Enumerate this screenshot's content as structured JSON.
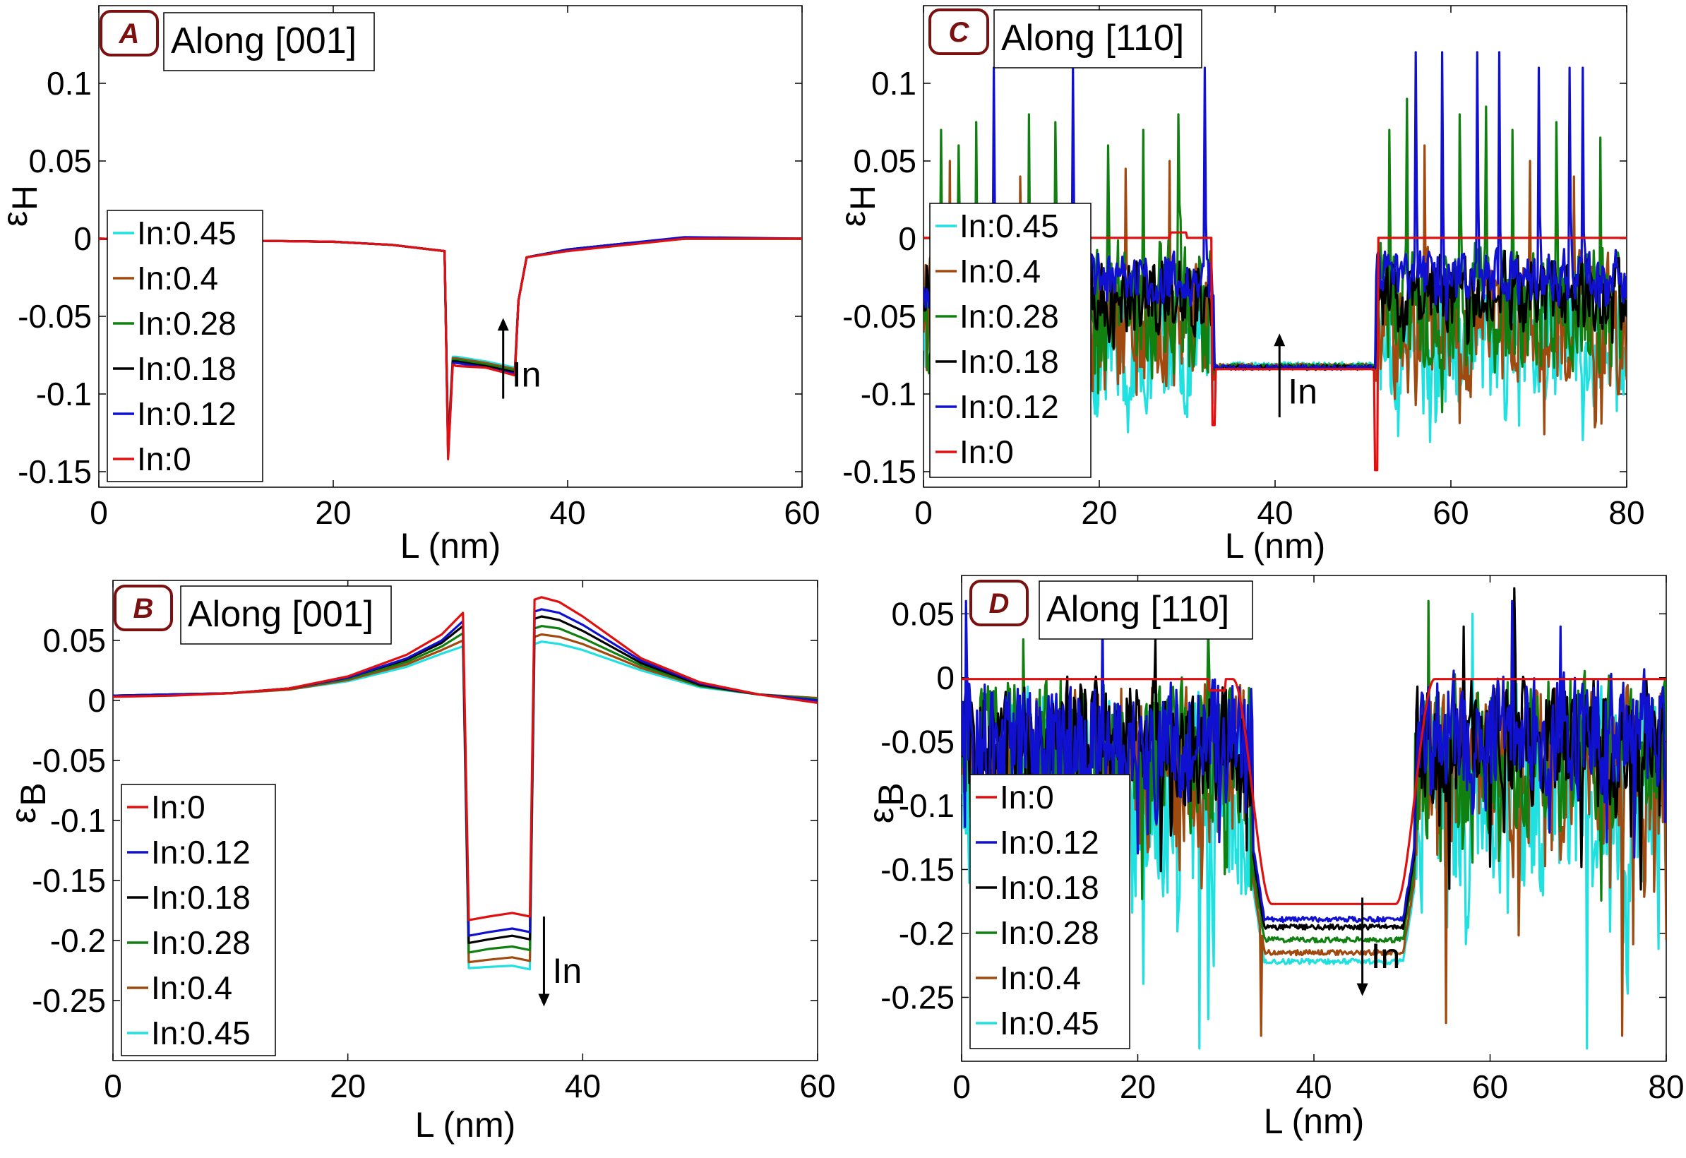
{
  "chart_data": [
    {
      "panel": "A",
      "title": "Along [001]",
      "type": "line",
      "xlabel": "L (nm)",
      "ylabel_sym": "ε",
      "ylabel_sub": "H",
      "xlim": [
        0,
        60
      ],
      "ylim": [
        -0.16,
        0.15
      ],
      "xticks": [
        0,
        20,
        40,
        60
      ],
      "xtick_labels": [
        "0",
        "20",
        "40",
        "60"
      ],
      "yticks": [
        0.1,
        0.05,
        0,
        -0.05,
        -0.1,
        -0.15
      ],
      "ytick_labels": [
        "0.1",
        "0.05",
        "0",
        "-0.05",
        "-0.1",
        "-0.15"
      ],
      "legend_order": [
        5,
        4,
        3,
        2,
        1,
        0
      ],
      "legend_position": "lower-left",
      "arrow": {
        "x": 34.5,
        "y_from": -0.103,
        "y_to": -0.051,
        "label": "In"
      },
      "series": [
        {
          "name": "In:0",
          "color": "#e01010",
          "x": [
            0,
            10,
            20,
            25,
            29.5,
            29.8,
            30.2,
            30.5,
            33,
            35.5,
            35.8,
            36.5,
            40,
            45,
            50,
            60
          ],
          "y": [
            0,
            -0.001,
            -0.002,
            -0.004,
            -0.008,
            -0.142,
            -0.081,
            -0.082,
            -0.083,
            -0.088,
            -0.04,
            -0.012,
            -0.008,
            -0.004,
            0,
            0
          ]
        },
        {
          "name": "In:0.12",
          "color": "#1010d0",
          "x": [
            0,
            10,
            20,
            25,
            29.5,
            29.8,
            30.2,
            30.5,
            33,
            35.5,
            35.8,
            36.5,
            40,
            45,
            50,
            60
          ],
          "y": [
            0,
            -0.001,
            -0.002,
            -0.004,
            -0.008,
            -0.14,
            -0.08,
            -0.08,
            -0.083,
            -0.087,
            -0.04,
            -0.012,
            -0.007,
            -0.003,
            0.001,
            0
          ]
        },
        {
          "name": "In:0.18",
          "color": "#000000",
          "x": [
            0,
            10,
            20,
            25,
            29.5,
            29.8,
            30.2,
            30.5,
            33,
            35.5,
            35.8,
            36.5,
            40,
            45,
            50,
            60
          ],
          "y": [
            0,
            -0.001,
            -0.002,
            -0.004,
            -0.008,
            -0.138,
            -0.079,
            -0.079,
            -0.082,
            -0.086,
            -0.04,
            -0.012,
            -0.007,
            -0.003,
            0,
            0
          ]
        },
        {
          "name": "In:0.28",
          "color": "#108010",
          "x": [
            0,
            10,
            20,
            25,
            29.5,
            29.8,
            30.2,
            30.5,
            33,
            35.5,
            35.8,
            36.5,
            40,
            45,
            50,
            60
          ],
          "y": [
            0,
            -0.001,
            -0.002,
            -0.004,
            -0.008,
            -0.136,
            -0.078,
            -0.078,
            -0.081,
            -0.085,
            -0.04,
            -0.012,
            -0.007,
            -0.003,
            0,
            0
          ]
        },
        {
          "name": "In:0.4",
          "color": "#a04a10",
          "x": [
            0,
            10,
            20,
            25,
            29.5,
            29.8,
            30.2,
            30.5,
            33,
            35.5,
            35.8,
            36.5,
            40,
            45,
            50,
            60
          ],
          "y": [
            0,
            -0.001,
            -0.002,
            -0.004,
            -0.008,
            -0.134,
            -0.077,
            -0.077,
            -0.08,
            -0.084,
            -0.04,
            -0.012,
            -0.007,
            -0.003,
            0,
            0
          ]
        },
        {
          "name": "In:0.45",
          "color": "#20e0e0",
          "x": [
            0,
            10,
            20,
            25,
            29.5,
            29.8,
            30.2,
            30.5,
            33,
            35.5,
            35.8,
            36.5,
            40,
            45,
            50,
            60
          ],
          "y": [
            0,
            -0.001,
            -0.002,
            -0.004,
            -0.008,
            -0.132,
            -0.076,
            -0.076,
            -0.079,
            -0.083,
            -0.04,
            -0.012,
            -0.007,
            -0.003,
            0,
            0
          ]
        }
      ]
    },
    {
      "panel": "B",
      "title": "Along [001]",
      "type": "line",
      "xlabel": "L (nm)",
      "ylabel_sym": "ε",
      "ylabel_sub": "B",
      "xlim": [
        0,
        60
      ],
      "ylim": [
        -0.3,
        0.1
      ],
      "xticks": [
        0,
        20,
        40,
        60
      ],
      "xtick_labels": [
        "0",
        "20",
        "40",
        "60"
      ],
      "yticks": [
        0.05,
        0,
        -0.05,
        -0.1,
        -0.15,
        -0.2,
        -0.25
      ],
      "ytick_labels": [
        "0.05",
        "0",
        "-0.05",
        "-0.1",
        "-0.15",
        "-0.2",
        "-0.25"
      ],
      "legend_order": [
        0,
        1,
        2,
        3,
        4,
        5
      ],
      "legend_position": "lower-left",
      "arrow": {
        "x": 36.7,
        "y_from": -0.18,
        "y_to": -0.255,
        "label": "In"
      },
      "series": [
        {
          "name": "In:0",
          "color": "#e01010",
          "x": [
            0,
            5,
            10,
            15,
            20,
            25,
            28,
            29.8,
            30.3,
            32,
            34,
            35.5,
            35.9,
            36.5,
            38,
            40,
            45,
            50,
            55,
            60
          ],
          "y": [
            0.003,
            0.004,
            0.006,
            0.01,
            0.02,
            0.038,
            0.055,
            0.073,
            -0.183,
            -0.18,
            -0.177,
            -0.18,
            0.084,
            0.086,
            0.082,
            0.07,
            0.035,
            0.015,
            0.005,
            -0.002
          ]
        },
        {
          "name": "In:0.12",
          "color": "#1010d0",
          "x": [
            0,
            5,
            10,
            15,
            20,
            25,
            28,
            29.8,
            30.3,
            32,
            34,
            35.5,
            35.9,
            36.5,
            38,
            40,
            45,
            50,
            55,
            60
          ],
          "y": [
            0.004,
            0.005,
            0.006,
            0.01,
            0.019,
            0.035,
            0.05,
            0.066,
            -0.196,
            -0.193,
            -0.19,
            -0.193,
            0.074,
            0.076,
            0.073,
            0.063,
            0.033,
            0.014,
            0.005,
            0
          ]
        },
        {
          "name": "In:0.18",
          "color": "#000000",
          "x": [
            0,
            5,
            10,
            15,
            20,
            25,
            28,
            29.8,
            30.3,
            32,
            34,
            35.5,
            35.9,
            36.5,
            38,
            40,
            45,
            50,
            55,
            60
          ],
          "y": [
            0.004,
            0.005,
            0.006,
            0.01,
            0.019,
            0.034,
            0.048,
            0.062,
            -0.202,
            -0.199,
            -0.196,
            -0.199,
            0.068,
            0.07,
            0.067,
            0.058,
            0.031,
            0.013,
            0.005,
            0
          ]
        },
        {
          "name": "In:0.28",
          "color": "#108010",
          "x": [
            0,
            5,
            10,
            15,
            20,
            25,
            28,
            29.8,
            30.3,
            32,
            34,
            35.5,
            35.9,
            36.5,
            38,
            40,
            45,
            50,
            55,
            60
          ],
          "y": [
            0.004,
            0.005,
            0.006,
            0.01,
            0.018,
            0.032,
            0.045,
            0.056,
            -0.21,
            -0.207,
            -0.205,
            -0.208,
            0.06,
            0.062,
            0.06,
            0.052,
            0.029,
            0.012,
            0.005,
            0.001
          ]
        },
        {
          "name": "In:0.4",
          "color": "#a04a10",
          "x": [
            0,
            5,
            10,
            15,
            20,
            25,
            28,
            29.8,
            30.3,
            32,
            34,
            35.5,
            35.9,
            36.5,
            38,
            40,
            45,
            50,
            55,
            60
          ],
          "y": [
            0.004,
            0.005,
            0.006,
            0.009,
            0.017,
            0.03,
            0.042,
            0.05,
            -0.218,
            -0.216,
            -0.214,
            -0.217,
            0.053,
            0.055,
            0.053,
            0.047,
            0.027,
            0.012,
            0.005,
            0.002
          ]
        },
        {
          "name": "In:0.45",
          "color": "#20e0e0",
          "x": [
            0,
            5,
            10,
            15,
            20,
            25,
            28,
            29.8,
            30.3,
            32,
            34,
            35.5,
            35.9,
            36.5,
            38,
            40,
            45,
            50,
            55,
            60
          ],
          "y": [
            0.004,
            0.005,
            0.006,
            0.009,
            0.016,
            0.028,
            0.039,
            0.045,
            -0.223,
            -0.222,
            -0.221,
            -0.224,
            0.047,
            0.049,
            0.047,
            0.042,
            0.025,
            0.011,
            0.005,
            0.002
          ]
        }
      ]
    },
    {
      "panel": "C",
      "title": "Along [110]",
      "type": "line",
      "xlabel": "L (nm)",
      "ylabel_sym": "ε",
      "ylabel_sub": "H",
      "xlim": [
        0,
        80
      ],
      "ylim": [
        -0.16,
        0.15
      ],
      "xticks": [
        0,
        20,
        40,
        60,
        80
      ],
      "xtick_labels": [
        "0",
        "20",
        "40",
        "60",
        "80"
      ],
      "yticks": [
        0.1,
        0.05,
        0,
        -0.05,
        -0.1,
        -0.15
      ],
      "ytick_labels": [
        "0.1",
        "0.05",
        "0",
        "-0.05",
        "-0.1",
        "-0.15"
      ],
      "legend_order": [
        5,
        4,
        3,
        2,
        1,
        0
      ],
      "legend_position": "lower-left",
      "arrow": {
        "x": 40.5,
        "y_from": -0.115,
        "y_to": -0.061,
        "label": "In"
      },
      "barrier": [
        33,
        51.5
      ],
      "barrier_mean": [
        -0.084,
        -0.083,
        -0.083,
        -0.082,
        -0.082,
        -0.081
      ],
      "barrier_plateau_min": -0.149,
      "edge_plateau": 0.004,
      "noise_seeds": [
        101,
        202,
        303,
        404,
        505,
        606
      ],
      "noise_order": [
        5,
        4,
        3,
        2,
        1,
        0
      ],
      "noise_center": [
        0,
        -0.025,
        -0.035,
        -0.045,
        -0.055,
        -0.07
      ],
      "noise_amp": [
        0.003,
        0.018,
        0.025,
        0.045,
        0.045,
        0.04
      ],
      "spikes": [
        {
          "x": [],
          "y": []
        },
        {
          "x": [
            8,
            17,
            32,
            56,
            59,
            63,
            65.5,
            70,
            73.5,
            75
          ],
          "y": [
            0.11,
            0.11,
            0.11,
            0.12,
            0.12,
            0.12,
            0.12,
            0.11,
            0.11,
            0.11
          ]
        },
        {
          "x": [],
          "y": []
        },
        {
          "x": [
            2,
            4,
            6,
            12,
            15,
            21,
            25,
            29,
            53,
            55,
            61,
            64,
            67,
            72,
            77
          ],
          "y": [
            0.07,
            0.06,
            0.075,
            0.08,
            0.075,
            0.06,
            0.07,
            0.08,
            0.07,
            0.09,
            0.08,
            0.085,
            0.07,
            0.075,
            0.065
          ]
        },
        {
          "x": [
            3,
            11,
            23,
            28,
            57,
            69,
            74
          ],
          "y": [
            0.05,
            0.04,
            0.045,
            0.05,
            0.06,
            0.05,
            0.04
          ]
        },
        {
          "x": [],
          "y": []
        }
      ],
      "series": [
        {
          "name": "In:0",
          "color": "#e01010",
          "x": [],
          "y": []
        },
        {
          "name": "In:0.12",
          "color": "#1010d0",
          "x": [],
          "y": []
        },
        {
          "name": "In:0.18",
          "color": "#000000",
          "x": [],
          "y": []
        },
        {
          "name": "In:0.28",
          "color": "#108010",
          "x": [],
          "y": []
        },
        {
          "name": "In:0.4",
          "color": "#a04a10",
          "x": [],
          "y": []
        },
        {
          "name": "In:0.45",
          "color": "#20e0e0",
          "x": [],
          "y": []
        }
      ]
    },
    {
      "panel": "D",
      "title": "Along [110]",
      "type": "line",
      "xlabel": "L (nm)",
      "ylabel_sym": "ε",
      "ylabel_sub": "B",
      "xlim": [
        0,
        80
      ],
      "ylim": [
        -0.3,
        0.08
      ],
      "xticks": [
        0,
        20,
        40,
        60,
        80
      ],
      "xtick_labels": [
        "0",
        "20",
        "40",
        "60",
        "80"
      ],
      "yticks": [
        0.05,
        0,
        -0.05,
        -0.1,
        -0.15,
        -0.2,
        -0.25
      ],
      "ytick_labels": [
        "0.05",
        "0",
        "-0.05",
        "-0.1",
        "-0.15",
        "-0.2",
        "-0.25"
      ],
      "legend_order": [
        0,
        1,
        2,
        3,
        4,
        5
      ],
      "legend_position": "lower-left",
      "arrow": {
        "x": 45.5,
        "y_from": -0.172,
        "y_to": -0.249,
        "label": "In"
      },
      "barrier": [
        33,
        51.5
      ],
      "barrier_mean": [
        -0.177,
        -0.189,
        -0.195,
        -0.205,
        -0.215,
        -0.222
      ],
      "noise_seeds": [
        111,
        222,
        333,
        444,
        555,
        666
      ],
      "noise_order": [
        5,
        4,
        3,
        2,
        1,
        0
      ],
      "noise_center": [
        0,
        -0.045,
        -0.05,
        -0.06,
        -0.07,
        -0.09
      ],
      "noise_amp": [
        0.003,
        0.045,
        0.045,
        0.055,
        0.06,
        0.075
      ],
      "spikes": [
        {
          "x": [],
          "y": []
        },
        {
          "x": [
            0.5,
            16,
            62.5,
            68
          ],
          "y": [
            0.06,
            0.05,
            0.06,
            0.04
          ]
        },
        {
          "x": [
            22,
            57,
            62.8
          ],
          "y": [
            0.03,
            0.04,
            0.07
          ]
        },
        {
          "x": [
            7,
            28,
            53
          ],
          "y": [
            0.03,
            0.04,
            0.06
          ]
        },
        {
          "x": [
            34,
            55,
            75
          ],
          "y": [
            -0.28,
            -0.27,
            -0.28
          ]
        },
        {
          "x": [
            27,
            58,
            71
          ],
          "y": [
            -0.29,
            0.05,
            -0.29
          ]
        }
      ],
      "series": [
        {
          "name": "In:0",
          "color": "#e01010",
          "x": [],
          "y": []
        },
        {
          "name": "In:0.12",
          "color": "#1010d0",
          "x": [],
          "y": []
        },
        {
          "name": "In:0.18",
          "color": "#000000",
          "x": [],
          "y": []
        },
        {
          "name": "In:0.28",
          "color": "#108010",
          "x": [],
          "y": []
        },
        {
          "name": "In:0.4",
          "color": "#a04a10",
          "x": [],
          "y": []
        },
        {
          "name": "In:0.45",
          "color": "#20e0e0",
          "x": [],
          "y": []
        }
      ]
    }
  ]
}
